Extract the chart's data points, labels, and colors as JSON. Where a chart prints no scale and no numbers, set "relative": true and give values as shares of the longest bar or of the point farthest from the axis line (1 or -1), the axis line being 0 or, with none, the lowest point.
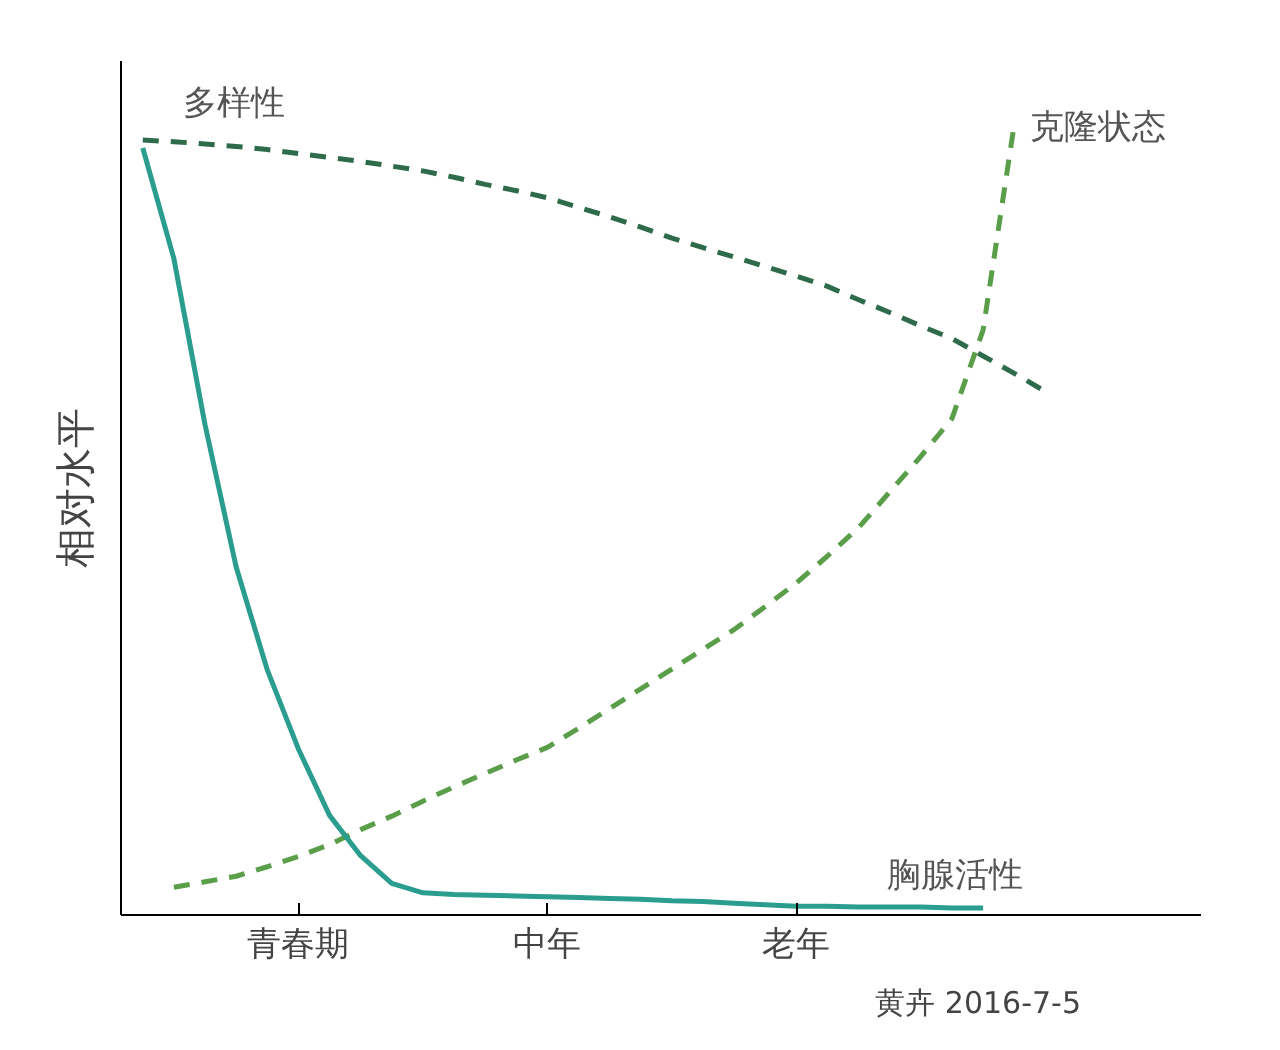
{
  "chart_data": {
    "type": "line",
    "relative": true,
    "ylabel": "相对水平",
    "categories": [
      null,
      null,
      null,
      null,
      null,
      "青春期",
      null,
      null,
      null,
      null,
      null,
      null,
      null,
      "中年",
      null,
      null,
      null,
      null,
      null,
      null,
      null,
      "老年",
      null,
      null,
      null,
      null,
      null,
      null,
      null,
      null
    ],
    "grid": false,
    "marker": "none",
    "annotations": [
      "黄卉 2016-7-5"
    ],
    "series": [
      {
        "name": "多样性",
        "color": "#2e6b4a",
        "line_style": "dashed",
        "values": [
          0.98,
          0.978,
          0.975,
          0.972,
          0.968,
          0.963,
          0.958,
          0.953,
          0.947,
          0.941,
          0.933,
          0.924,
          0.916,
          0.907,
          0.895,
          0.883,
          0.87,
          0.856,
          0.844,
          0.832,
          0.82,
          0.808,
          0.795,
          0.778,
          0.762,
          0.745,
          0.729,
          0.707,
          0.685,
          0.662
        ]
      },
      {
        "name": "克隆状态",
        "color": "#5a9e4a",
        "line_style": "dashed",
        "values": [
          null,
          0.035,
          0.042,
          0.049,
          0.061,
          0.074,
          0.089,
          0.108,
          0.125,
          0.144,
          0.162,
          0.179,
          0.196,
          0.212,
          0.236,
          0.261,
          0.286,
          0.311,
          0.336,
          0.361,
          0.39,
          0.42,
          0.454,
          0.49,
          0.535,
          0.58,
          0.628,
          0.74,
          1.0,
          null
        ]
      },
      {
        "name": "胸腺活性",
        "color": "#2a9d8f",
        "line_style": "solid",
        "values": [
          0.97,
          0.83,
          0.62,
          0.44,
          0.31,
          0.21,
          0.126,
          0.075,
          0.04,
          0.028,
          0.026,
          0.025,
          0.024,
          0.023,
          0.022,
          0.021,
          0.02,
          0.018,
          0.017,
          0.015,
          0.013,
          0.011,
          0.011,
          0.01,
          0.01,
          0.01,
          0.009,
          0.009,
          null,
          null
        ]
      }
    ]
  }
}
